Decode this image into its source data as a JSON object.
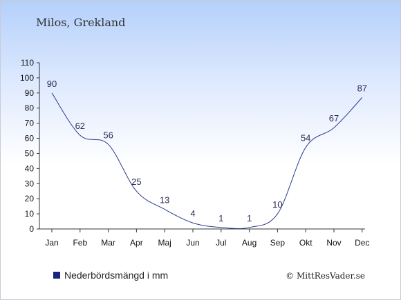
{
  "title": "Milos, Grekland",
  "legend": {
    "label": "Nederbördsmängd i mm",
    "color": "#1a237e"
  },
  "credit": "© MittResVader.se",
  "colors": {
    "line": "#2b3a8f",
    "axis": "#333333",
    "text": "#222222"
  },
  "chart_data": {
    "type": "line",
    "title": "Milos, Grekland",
    "categories": [
      "Jan",
      "Feb",
      "Mar",
      "Apr",
      "Maj",
      "Jun",
      "Jul",
      "Aug",
      "Sep",
      "Okt",
      "Nov",
      "Dec"
    ],
    "series": [
      {
        "name": "Nederbördsmängd i mm",
        "values": [
          90,
          62,
          56,
          25,
          13,
          4,
          1,
          1,
          10,
          54,
          67,
          87
        ]
      }
    ],
    "data_labels": [
      "90",
      "62",
      "56",
      "25",
      "13",
      "4",
      "1",
      "1",
      "10",
      "54",
      "67",
      "87"
    ],
    "ylim": [
      0,
      110
    ],
    "yticks": [
      0,
      10,
      20,
      30,
      40,
      50,
      60,
      70,
      80,
      90,
      100,
      110
    ],
    "grid": false,
    "legend_position": "bottom-left"
  }
}
